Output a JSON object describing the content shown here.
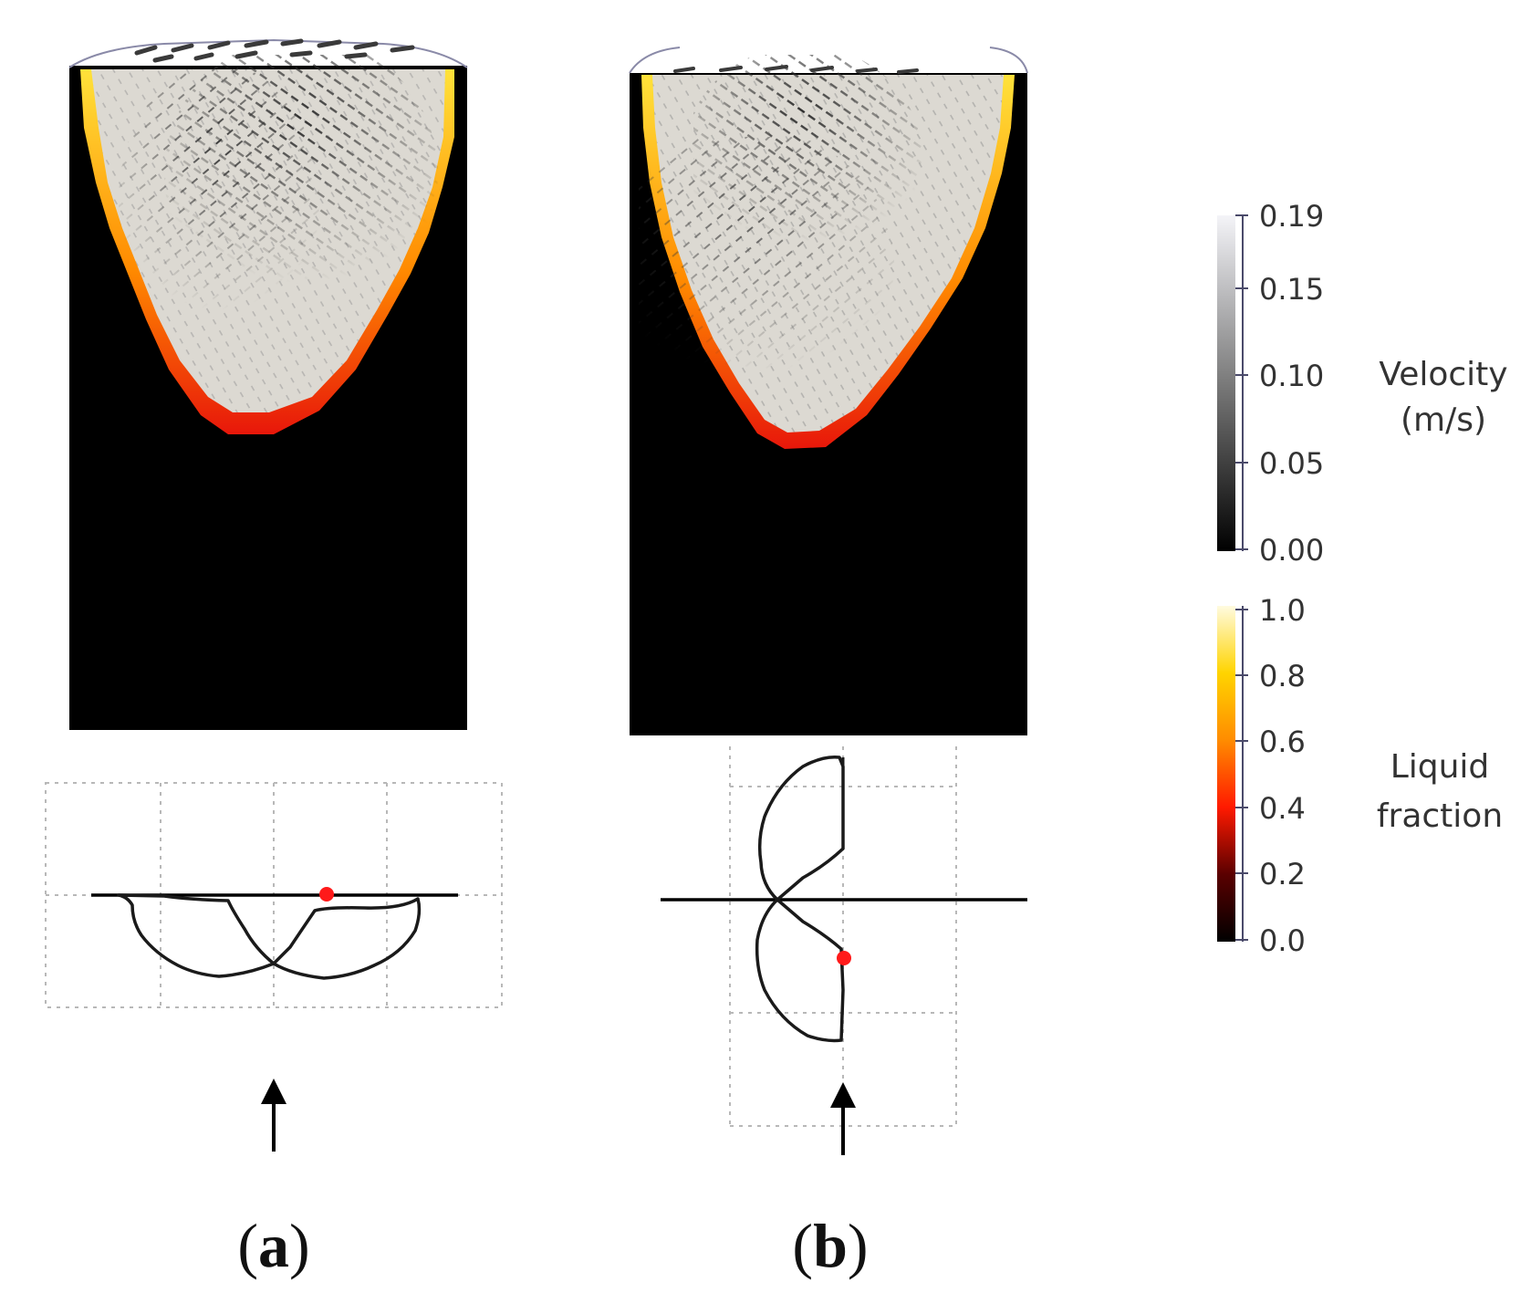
{
  "panels": [
    {
      "id": "a",
      "open": "(",
      "letter": "a",
      "close": ")"
    },
    {
      "id": "b",
      "open": "(",
      "letter": "b",
      "close": ")"
    }
  ],
  "colorbars": {
    "velocity": {
      "title_line1": "Velocity",
      "title_line2": "(m/s)",
      "ticks": [
        "0.19",
        "0.15",
        "0.10",
        "0.05",
        "0.00"
      ],
      "colors": {
        "top": "#f2f2f6",
        "bottom": "#000000"
      }
    },
    "liquid_fraction": {
      "title_line1": "Liquid",
      "title_line2": "fraction",
      "ticks": [
        "1.0",
        "0.8",
        "0.6",
        "0.4",
        "0.2",
        "0.0"
      ],
      "colors": [
        "#000000",
        "#5a0000",
        "#ff1a00",
        "#ff8c00",
        "#ffd400",
        "#fffbe0"
      ]
    }
  },
  "colors": {
    "solid": "#000000",
    "melt_pool": "#dcd9d2",
    "rim_red": "#e8170a",
    "rim_orange": "#ff8a00",
    "rim_yellow": "#ffe23a",
    "vector_dark": "#2e2e2e",
    "marker": "#ff1a1a"
  },
  "icons": [
    "scan-direction-arrow-icon",
    "red-marker-dot-icon"
  ]
}
